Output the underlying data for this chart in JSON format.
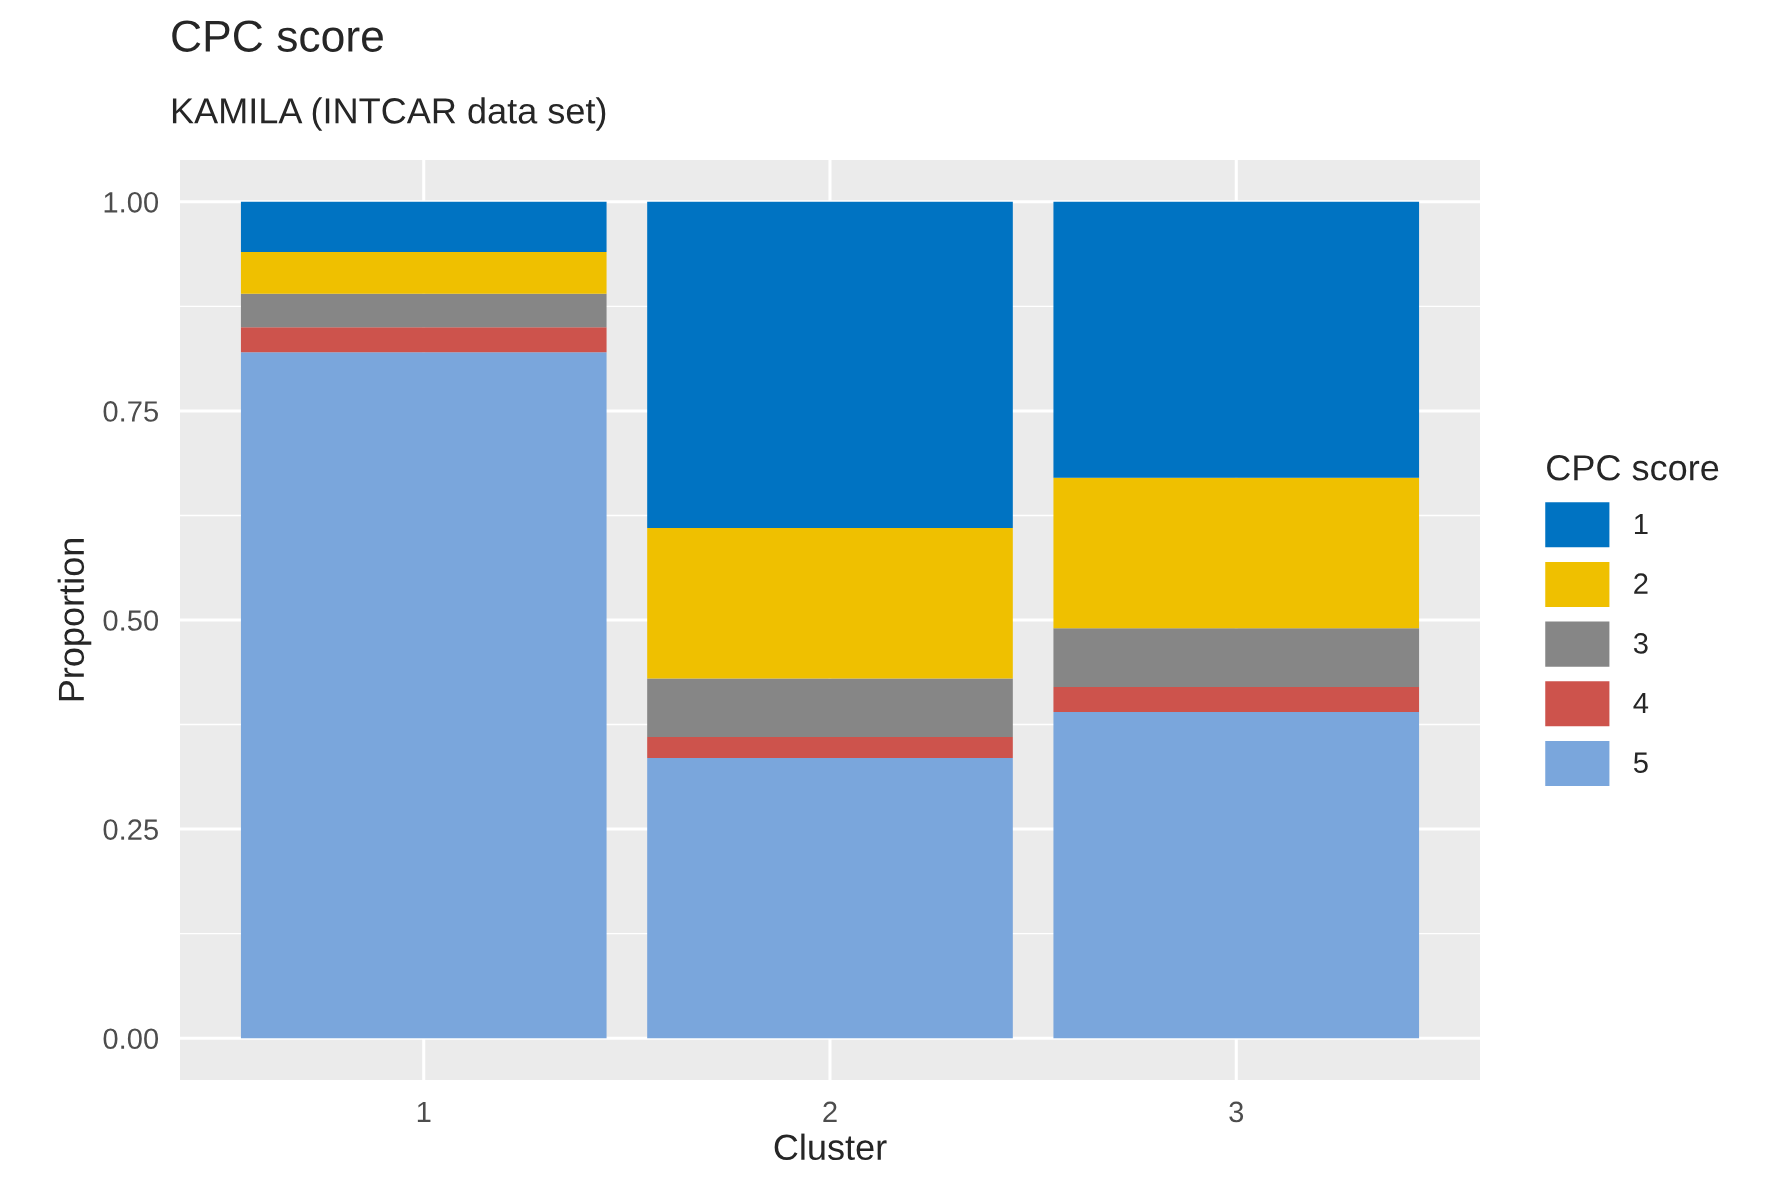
{
  "chart_data": {
    "type": "bar",
    "title": "CPC score",
    "subtitle": "KAMILA (INTCAR data set)",
    "xlabel": "Cluster",
    "ylabel": "Proportion",
    "legend_title": "CPC score",
    "categories": [
      "1",
      "2",
      "3"
    ],
    "stacked": true,
    "series": [
      {
        "name": "5",
        "color": "#7aa6dc",
        "values": [
          0.82,
          0.335,
          0.39
        ]
      },
      {
        "name": "4",
        "color": "#cd534c",
        "values": [
          0.03,
          0.025,
          0.03
        ]
      },
      {
        "name": "3",
        "color": "#868686",
        "values": [
          0.04,
          0.07,
          0.07
        ]
      },
      {
        "name": "2",
        "color": "#efc000",
        "values": [
          0.05,
          0.18,
          0.18
        ]
      },
      {
        "name": "1",
        "color": "#0073c2",
        "values": [
          0.06,
          0.39,
          0.33
        ]
      }
    ],
    "ylim": [
      -0.05,
      1.05
    ],
    "yticks": [
      {
        "value": 0,
        "label": "0.00"
      },
      {
        "value": 0.25,
        "label": "0.25"
      },
      {
        "value": 0.5,
        "label": "0.50"
      },
      {
        "value": 0.75,
        "label": "0.75"
      },
      {
        "value": 1,
        "label": "1.00"
      }
    ],
    "grid": true,
    "legend": "right"
  }
}
